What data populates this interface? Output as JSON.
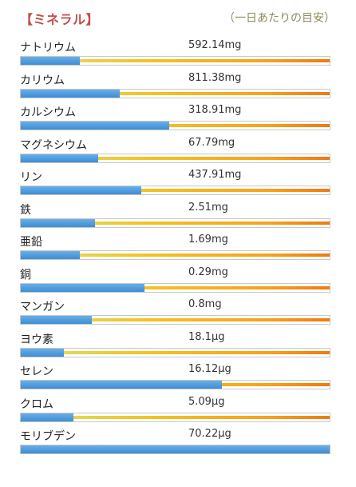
{
  "header": {
    "title": "【ミネラル】",
    "note": "（一日あたりの目安）"
  },
  "colors": {
    "title": "#c0504d",
    "note": "#8b8b5a",
    "bar_fill": "#3d8dd4",
    "reference_line_start": "#d8e37a",
    "reference_line_end": "#f07a10"
  },
  "minerals": [
    {
      "name": "ナトリウム",
      "value": "592.14mg",
      "percent": 19
    },
    {
      "name": "カリウム",
      "value": "811.38mg",
      "percent": 32
    },
    {
      "name": "カルシウム",
      "value": "318.91mg",
      "percent": 48
    },
    {
      "name": "マグネシウム",
      "value": "67.79mg",
      "percent": 25
    },
    {
      "name": "リン",
      "value": "437.91mg",
      "percent": 39
    },
    {
      "name": "鉄",
      "value": "2.51mg",
      "percent": 24
    },
    {
      "name": "亜鉛",
      "value": "1.69mg",
      "percent": 19
    },
    {
      "name": "銅",
      "value": "0.29mg",
      "percent": 40
    },
    {
      "name": "マンガン",
      "value": "0.8mg",
      "percent": 23
    },
    {
      "name": "ヨウ素",
      "value": "18.1μg",
      "percent": 14
    },
    {
      "name": "セレン",
      "value": "16.12μg",
      "percent": 65
    },
    {
      "name": "クロム",
      "value": "5.09μg",
      "percent": 17
    },
    {
      "name": "モリブデン",
      "value": "70.22μg",
      "percent": 100
    }
  ]
}
